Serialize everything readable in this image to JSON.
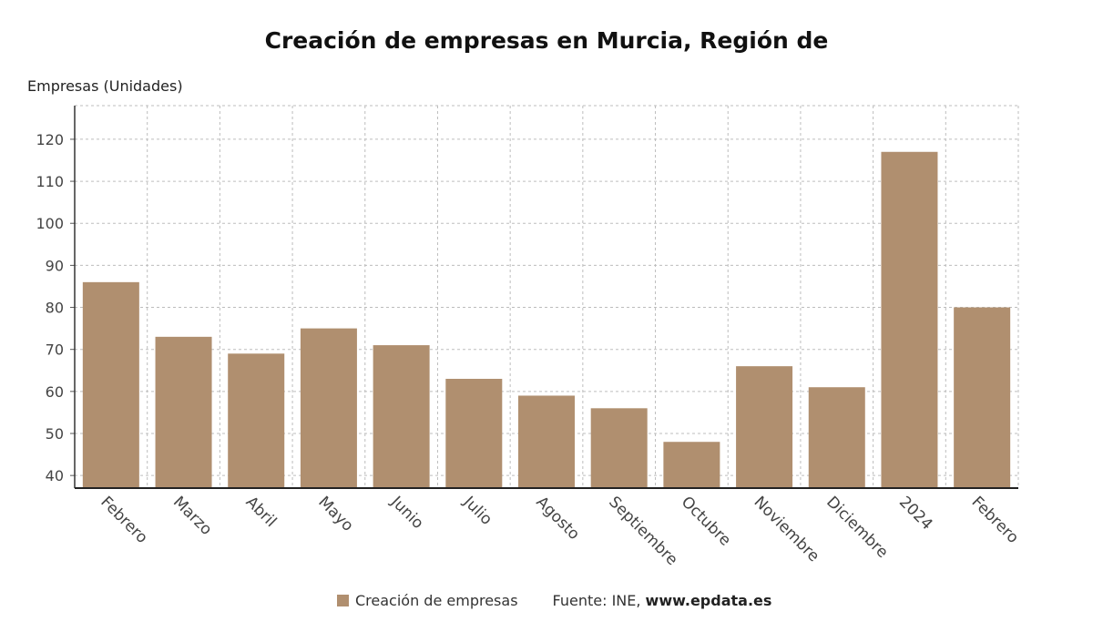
{
  "chart_data": {
    "type": "bar",
    "title": "Creación de empresas en Murcia, Región de",
    "ylabel": "Empresas (Unidades)",
    "xlabel": "",
    "categories": [
      "Febrero",
      "Marzo",
      "Abril",
      "Mayo",
      "Junio",
      "Julio",
      "Agosto",
      "Septiembre",
      "Octubre",
      "Noviembre",
      "Diciembre",
      "2024",
      "Febrero"
    ],
    "series": [
      {
        "name": "Creación de empresas",
        "values": [
          86,
          73,
          69,
          75,
          71,
          63,
          59,
          56,
          48,
          66,
          61,
          117,
          80
        ],
        "color": "#b08f6f"
      }
    ],
    "ylim": [
      37,
      128
    ],
    "yticks": [
      40,
      50,
      60,
      70,
      80,
      90,
      100,
      110,
      120
    ],
    "grid": true,
    "legend_placement": "bottom-center"
  },
  "legend": {
    "series_label": "Creación de empresas",
    "source_prefix": "Fuente: INE, ",
    "source_site": "www.epdata.es"
  }
}
